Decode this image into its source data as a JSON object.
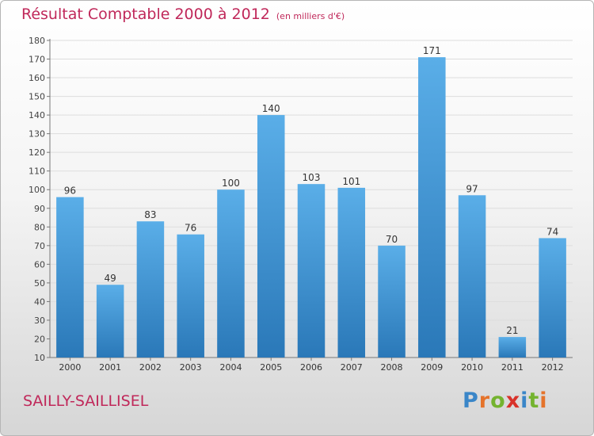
{
  "header": {
    "title": "Résultat Comptable 2000 à 2012",
    "subtitle": "(en milliers d'€)"
  },
  "footer": {
    "commune": "SAILLY-SAILLISEL",
    "logo_letters": [
      {
        "ch": "P",
        "color": "#3a86c8"
      },
      {
        "ch": "r",
        "color": "#e5732b"
      },
      {
        "ch": "o",
        "color": "#74b32f"
      },
      {
        "ch": "x",
        "color": "#d8322a"
      },
      {
        "ch": "i",
        "color": "#3a86c8"
      },
      {
        "ch": "t",
        "color": "#74b32f"
      },
      {
        "ch": "i",
        "color": "#e5732b"
      }
    ]
  },
  "chart_data": {
    "type": "bar",
    "title": "Résultat Comptable 2000 à 2012",
    "subtitle": "(en milliers d'€)",
    "categories": [
      "2000",
      "2001",
      "2002",
      "2003",
      "2004",
      "2005",
      "2006",
      "2007",
      "2008",
      "2009",
      "2010",
      "2011",
      "2012"
    ],
    "values": [
      96,
      49,
      83,
      76,
      100,
      140,
      103,
      101,
      70,
      171,
      97,
      21,
      74
    ],
    "xlabel": "",
    "ylabel": "",
    "ylim": [
      10,
      180
    ],
    "yticks": [
      10,
      20,
      30,
      40,
      50,
      60,
      70,
      80,
      90,
      100,
      110,
      120,
      130,
      140,
      150,
      160,
      170,
      180
    ],
    "grid": true,
    "bar_color_top": "#5aaee8",
    "bar_color_bottom": "#2a78b8"
  }
}
